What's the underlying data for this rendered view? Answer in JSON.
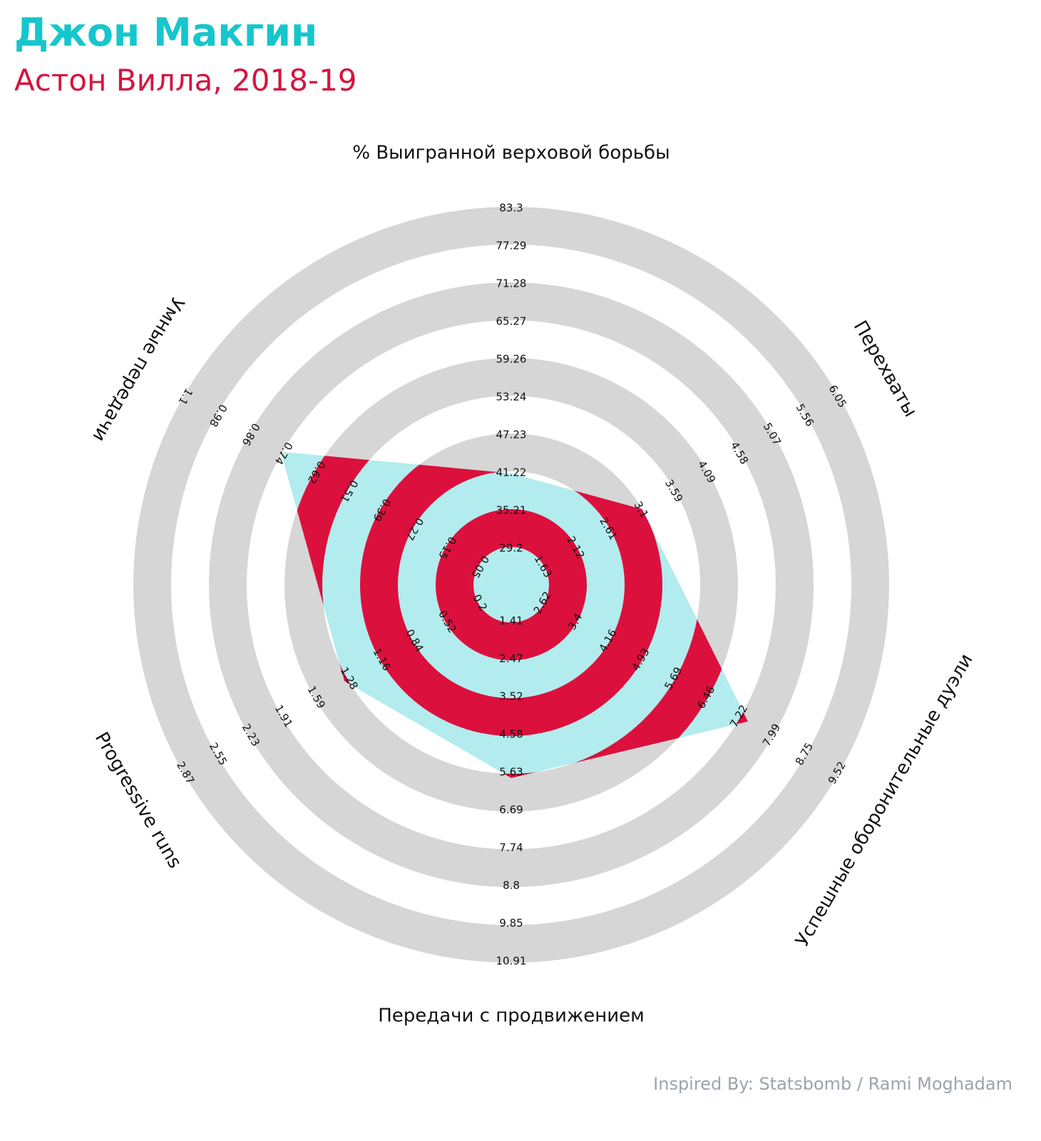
{
  "header": {
    "title": "Джон Макгин",
    "subtitle": "Астон Вилла, 2018-19"
  },
  "footer": {
    "credit": "Inspired By: Statsbomb / Rami Moghadam"
  },
  "colors": {
    "title": "#16c6cc",
    "subtitle": "#d5143f",
    "ring_band": "#d6d6d6",
    "player_fill_a": "#b2ecee",
    "player_fill_b": "#dc103d",
    "credit": "#9ba3ad"
  },
  "chart_data": {
    "type": "radar",
    "grid": true,
    "axes": [
      {
        "label": "% Выигранной верховой борьбы",
        "ticks": [
          "29.2",
          "35.21",
          "41.22",
          "47.23",
          "53.24",
          "59.26",
          "65.27",
          "71.28",
          "77.29",
          "83.3"
        ],
        "value": 40.9
      },
      {
        "label": "Перехваты",
        "ticks": [
          "1.63",
          "2.12",
          "2.61",
          "3.1",
          "3.59",
          "4.09",
          "4.58",
          "5.07",
          "5.56",
          "6.05"
        ],
        "value": 3.1
      },
      {
        "label": "Успешные оборонительные дуэли",
        "ticks": [
          "2.62",
          "3.4",
          "4.16",
          "4.93",
          "5.69",
          "6.46",
          "7.22",
          "7.99",
          "8.75",
          "9.52"
        ],
        "value": 7.4
      },
      {
        "label": "Передачи с продвижением",
        "ticks": [
          "1.41",
          "2.47",
          "3.52",
          "4.58",
          "5.63",
          "6.69",
          "7.74",
          "8.8",
          "9.85",
          "10.91"
        ],
        "value": 5.75
      },
      {
        "label": "Progressive runs",
        "ticks": [
          "0.2",
          "0.52",
          "0.84",
          "1.16",
          "1.28",
          "1.59",
          "1.91",
          "2.23",
          "2.55",
          "2.87"
        ],
        "value": 1.31
      },
      {
        "label": "Умные передачи",
        "ticks": [
          "0.05",
          "0.15",
          "0.27",
          "0.39",
          "0.51",
          "0.62",
          "0.74",
          "0.86",
          "0.98",
          "1.1"
        ],
        "value": 0.745
      }
    ]
  }
}
